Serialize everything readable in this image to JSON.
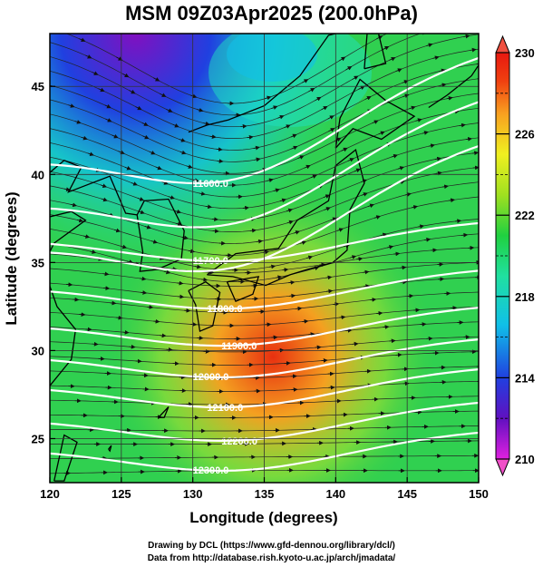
{
  "title": "MSM 09Z03Apr2025 (200.0hPa)",
  "map": {
    "xlabel": "Longitude (degrees)",
    "ylabel": "Latitude  (degrees)",
    "lon_range": [
      120,
      150
    ],
    "lat_range": [
      22.5,
      48
    ],
    "lon_ticks": [
      120,
      125,
      130,
      135,
      140,
      145,
      150
    ],
    "lat_ticks": [
      25,
      30,
      35,
      40,
      45
    ],
    "grid": true,
    "coastline_color": "#000000",
    "streamline_color": "#222222",
    "contour_color": "#ffffff"
  },
  "colorbar": {
    "labels": [
      "230",
      "226",
      "222",
      "218",
      "214",
      "210"
    ],
    "min": 210,
    "max": 230,
    "colors": [
      "#e020e0",
      "#6010c0",
      "#2040e0",
      "#10c0e8",
      "#20e0a0",
      "#20d040",
      "#a0e020",
      "#f0f020",
      "#f8a020",
      "#f04010",
      "#e81810"
    ]
  },
  "contours": [
    {
      "label": "11600.0",
      "lat": 44.0
    },
    {
      "label": "",
      "lat": 41.5
    },
    {
      "label": "",
      "lat": 39.0
    },
    {
      "label": "11700.0",
      "lat": 36.5
    },
    {
      "label": "11800.0",
      "lat": 33.8
    },
    {
      "label": "11900.0",
      "lat": 31.7
    },
    {
      "label": "12000.0",
      "lat": 29.9
    },
    {
      "label": "12100.0",
      "lat": 28.2
    },
    {
      "label": "12200.0",
      "lat": 26.3
    },
    {
      "label": "12300.0",
      "lat": 24.6
    }
  ],
  "credits": {
    "line1": "Drawing by DCL (https://www.gfd-dennou.org/library/dcl/)",
    "line2": "Data from http://database.rish.kyoto-u.ac.jp/arch/jmadata/"
  }
}
